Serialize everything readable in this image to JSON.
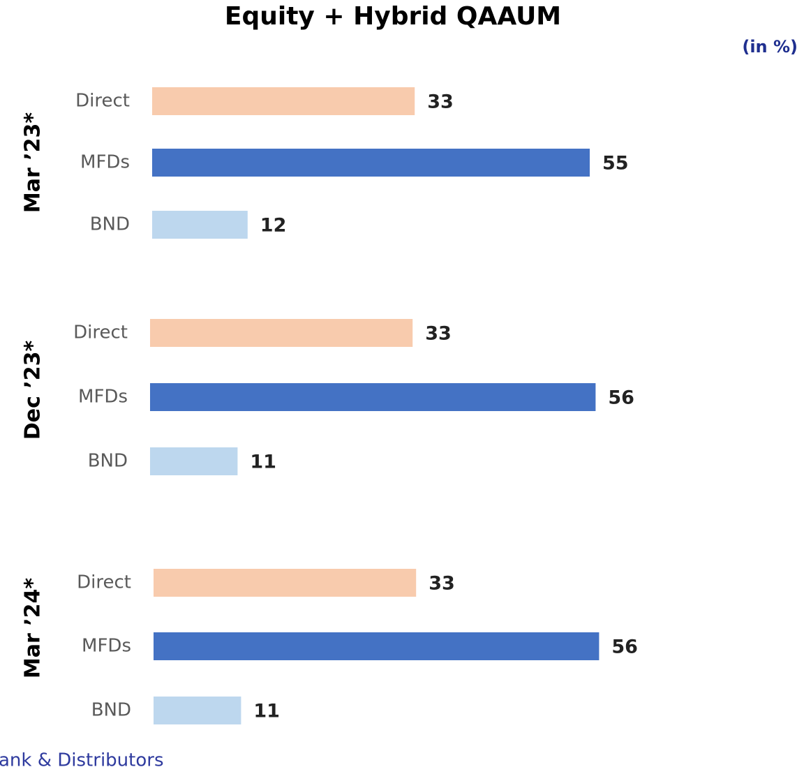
{
  "title": "Equity + Hybrid QAAUM",
  "unit_note": "(in %)",
  "footer": "ank & Distributors",
  "chart_data": [
    {
      "type": "bar",
      "orientation": "horizontal",
      "title": "Mar ’23*",
      "categories": [
        "Direct",
        "MFDs",
        "BND"
      ],
      "values": [
        33,
        55,
        12
      ],
      "colors": [
        "#f8cbad",
        "#4472c4",
        "#bdd7ee"
      ]
    },
    {
      "type": "bar",
      "orientation": "horizontal",
      "title": "Dec ’23*",
      "categories": [
        "Direct",
        "MFDs",
        "BND"
      ],
      "values": [
        33,
        56,
        11
      ],
      "colors": [
        "#f8cbad",
        "#4472c4",
        "#bdd7ee"
      ]
    },
    {
      "type": "bar",
      "orientation": "horizontal",
      "title": "Mar ’24*",
      "categories": [
        "Direct",
        "MFDs",
        "BND"
      ],
      "values": [
        33,
        56,
        11
      ],
      "colors": [
        "#f8cbad",
        "#4472c4",
        "#bdd7ee"
      ]
    }
  ]
}
